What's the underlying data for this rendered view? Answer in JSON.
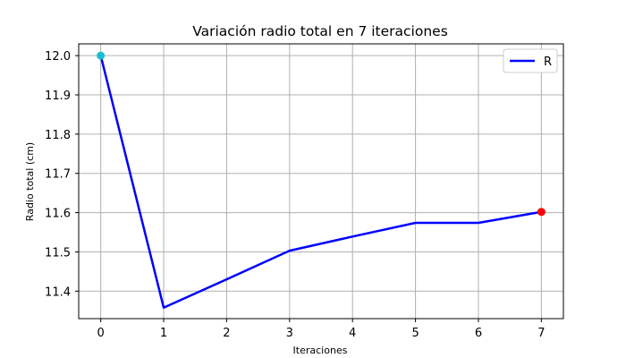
{
  "chart_data": {
    "type": "line",
    "title": "Variación radio total en 7 iteraciones",
    "xlabel": "Iteraciones",
    "ylabel": "Radio total (cm)",
    "xlim": [
      -0.35,
      7.35
    ],
    "ylim": [
      11.33,
      12.03
    ],
    "xticks": [
      0,
      1,
      2,
      3,
      4,
      5,
      6,
      7
    ],
    "yticks": [
      11.4,
      11.5,
      11.6,
      11.7,
      11.8,
      11.9,
      12.0
    ],
    "ytick_labels": [
      "11.4",
      "11.5",
      "11.6",
      "11.7",
      "11.8",
      "11.9",
      "12.0"
    ],
    "grid": true,
    "legend_position": "top-right",
    "series": [
      {
        "name": "R",
        "color": "#0000ff",
        "x": [
          0,
          1,
          2,
          3,
          4,
          5,
          6,
          7
        ],
        "y": [
          12.0,
          11.358,
          11.43,
          11.503,
          11.539,
          11.574,
          11.574,
          11.602
        ]
      }
    ],
    "markers": [
      {
        "label": "start",
        "x": 0,
        "y": 12.0,
        "color": "#17becf"
      },
      {
        "label": "end",
        "x": 7,
        "y": 11.602,
        "color": "#ff0000"
      }
    ]
  }
}
